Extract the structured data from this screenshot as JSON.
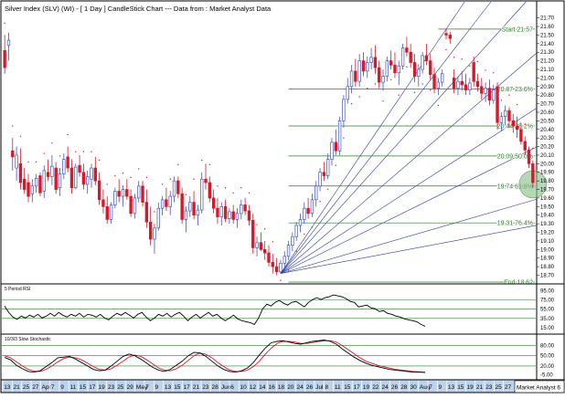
{
  "header": {
    "title": "Silver Index (SLV) (WI) - [ 1 Day ] CandleStick Chart --- Data from : Market Analyst Data"
  },
  "colors": {
    "up": "#4057c8",
    "down": "#d8182a",
    "fib": "#2b7a2b",
    "fan": "#2a3a9c",
    "indicator_line": "#000000",
    "stoch_signal": "#d8182a",
    "highlight": "#8fc08f",
    "grid": "#b8b8b8",
    "dates_bar": "#bdd3ec"
  },
  "chart_data": [
    {
      "type": "candlestick",
      "name": "price",
      "y_ticks": [
        "21.70",
        "21.60",
        "21.50",
        "21.40",
        "21.30",
        "21.20",
        "21.10",
        "21.00",
        "20.90",
        "20.80",
        "20.70",
        "20.60",
        "20.50",
        "20.40",
        "20.30",
        "20.20",
        "20.10",
        "20.00",
        "19.90",
        "19.80",
        "19.70",
        "19.60",
        "19.50",
        "19.40",
        "19.30",
        "19.20",
        "19.10",
        "19.00",
        "18.90",
        "18.80",
        "18.70"
      ],
      "ylim": [
        18.62,
        21.76
      ],
      "fib_levels": [
        {
          "label": "Start 21.57",
          "value": 21.57
        },
        {
          "label": "20.87 23.6%",
          "value": 20.87
        },
        {
          "label": "20.44 38.2%",
          "value": 20.44
        },
        {
          "label": "20.09 50.0%",
          "value": 20.09
        },
        {
          "label": "19.74 61.8%",
          "value": 19.74
        },
        {
          "label": "19.31 76.4%",
          "value": 19.31
        },
        {
          "label": "End 18.62",
          "value": 18.62
        }
      ],
      "fan_origin": {
        "index": 70,
        "value": 18.72
      },
      "fan_targets": [
        {
          "index": 112,
          "value": 21.57
        },
        {
          "index": 118,
          "value": 21.57
        },
        {
          "index": 126,
          "value": 21.57
        },
        {
          "index": 142,
          "value": 21.57
        },
        {
          "index": 166,
          "value": 21.57
        },
        {
          "index": 166,
          "value": 20.9
        },
        {
          "index": 166,
          "value": 20.0
        },
        {
          "index": 166,
          "value": 19.55
        }
      ],
      "highlight": {
        "index": 134,
        "value": 19.76
      },
      "candles": [
        [
          21.32,
          21.5,
          21.05,
          21.12
        ],
        [
          21.38,
          21.53,
          21.2,
          21.44
        ],
        [
          20.15,
          20.3,
          19.92,
          20.08
        ],
        [
          19.95,
          20.2,
          19.8,
          20.1
        ],
        [
          20.0,
          20.18,
          19.7,
          19.78
        ],
        [
          19.82,
          19.95,
          19.65,
          19.7
        ],
        [
          19.78,
          19.88,
          19.55,
          19.62
        ],
        [
          19.65,
          19.82,
          19.55,
          19.74
        ],
        [
          19.74,
          19.88,
          19.66,
          19.83
        ],
        [
          19.86,
          19.9,
          19.62,
          19.66
        ],
        [
          19.68,
          19.98,
          19.6,
          19.92
        ],
        [
          19.9,
          20.05,
          19.8,
          19.85
        ],
        [
          19.85,
          20.1,
          19.75,
          19.97
        ],
        [
          19.95,
          20.02,
          19.65,
          19.7
        ],
        [
          19.72,
          19.95,
          19.62,
          19.88
        ],
        [
          19.88,
          20.12,
          19.82,
          20.05
        ],
        [
          20.08,
          20.2,
          19.9,
          19.95
        ],
        [
          19.95,
          20.05,
          19.65,
          19.72
        ],
        [
          19.72,
          20.0,
          19.7,
          19.96
        ],
        [
          19.98,
          20.1,
          19.85,
          19.9
        ],
        [
          19.9,
          20.0,
          19.7,
          19.76
        ],
        [
          19.76,
          19.92,
          19.65,
          19.85
        ],
        [
          19.82,
          20.0,
          19.72,
          19.95
        ],
        [
          19.95,
          20.08,
          19.75,
          19.8
        ],
        [
          19.8,
          19.9,
          19.52,
          19.58
        ],
        [
          19.58,
          19.7,
          19.42,
          19.5
        ],
        [
          19.5,
          19.62,
          19.3,
          19.35
        ],
        [
          19.35,
          19.55,
          19.3,
          19.52
        ],
        [
          19.52,
          19.72,
          19.48,
          19.68
        ],
        [
          19.68,
          19.82,
          19.55,
          19.62
        ],
        [
          19.62,
          19.75,
          19.5,
          19.7
        ],
        [
          19.7,
          19.82,
          19.58,
          19.62
        ],
        [
          19.62,
          19.7,
          19.38,
          19.42
        ],
        [
          19.42,
          19.65,
          19.36,
          19.6
        ],
        [
          19.6,
          19.8,
          19.55,
          19.74
        ],
        [
          19.74,
          19.8,
          19.5,
          19.55
        ],
        [
          19.55,
          19.7,
          19.25,
          19.32
        ],
        [
          19.32,
          19.5,
          19.05,
          19.12
        ],
        [
          19.12,
          19.3,
          18.95,
          19.25
        ],
        [
          19.25,
          19.55,
          19.22,
          19.48
        ],
        [
          19.48,
          19.62,
          19.4,
          19.58
        ],
        [
          19.58,
          19.72,
          19.45,
          19.5
        ],
        [
          19.5,
          19.68,
          19.4,
          19.62
        ],
        [
          19.62,
          19.85,
          19.55,
          19.8
        ],
        [
          19.8,
          19.85,
          19.6,
          19.65
        ],
        [
          19.65,
          19.72,
          19.3,
          19.35
        ],
        [
          19.35,
          19.5,
          19.2,
          19.45
        ],
        [
          19.45,
          19.62,
          19.38,
          19.55
        ],
        [
          19.55,
          19.68,
          19.35,
          19.4
        ],
        [
          19.4,
          19.52,
          19.28,
          19.46
        ],
        [
          19.46,
          19.9,
          19.42,
          19.82
        ],
        [
          19.82,
          20.0,
          19.7,
          19.78
        ],
        [
          19.78,
          19.85,
          19.55,
          19.6
        ],
        [
          19.6,
          19.7,
          19.42,
          19.48
        ],
        [
          19.48,
          19.6,
          19.3,
          19.38
        ],
        [
          19.38,
          19.55,
          19.28,
          19.5
        ],
        [
          19.5,
          19.58,
          19.32,
          19.36
        ],
        [
          19.36,
          19.48,
          19.3,
          19.44
        ],
        [
          19.44,
          19.52,
          19.3,
          19.35
        ],
        [
          19.35,
          19.48,
          19.25,
          19.42
        ],
        [
          19.42,
          19.58,
          19.35,
          19.52
        ],
        [
          19.52,
          19.6,
          19.4,
          19.45
        ],
        [
          19.45,
          19.52,
          19.28,
          19.34
        ],
        [
          19.34,
          19.42,
          18.95,
          19.02
        ],
        [
          19.02,
          19.15,
          18.92,
          19.08
        ],
        [
          19.08,
          19.2,
          18.98,
          19.0
        ],
        [
          19.0,
          19.1,
          18.88,
          18.96
        ],
        [
          18.96,
          19.05,
          18.8,
          18.85
        ],
        [
          18.85,
          18.95,
          18.72,
          18.8
        ],
        [
          18.8,
          18.9,
          18.7,
          18.74
        ],
        [
          18.74,
          18.88,
          18.72,
          18.84
        ],
        [
          18.84,
          18.98,
          18.8,
          18.92
        ],
        [
          18.92,
          19.1,
          18.88,
          19.05
        ],
        [
          19.05,
          19.2,
          18.98,
          19.15
        ],
        [
          19.15,
          19.32,
          19.1,
          19.28
        ],
        [
          19.28,
          19.42,
          19.2,
          19.35
        ],
        [
          19.35,
          19.55,
          19.3,
          19.48
        ],
        [
          19.48,
          19.6,
          19.36,
          19.42
        ],
        [
          19.42,
          19.65,
          19.38,
          19.58
        ],
        [
          19.58,
          19.8,
          19.5,
          19.74
        ],
        [
          19.74,
          19.95,
          19.68,
          19.9
        ],
        [
          19.9,
          20.02,
          19.8,
          19.86
        ],
        [
          19.86,
          20.12,
          19.82,
          20.05
        ],
        [
          20.05,
          20.3,
          19.98,
          20.25
        ],
        [
          20.25,
          20.4,
          20.1,
          20.15
        ],
        [
          20.15,
          20.55,
          20.1,
          20.5
        ],
        [
          20.5,
          20.8,
          20.42,
          20.75
        ],
        [
          20.75,
          21.0,
          20.7,
          20.9
        ],
        [
          20.9,
          21.15,
          20.82,
          21.08
        ],
        [
          21.08,
          21.22,
          20.9,
          20.96
        ],
        [
          20.96,
          21.28,
          20.9,
          21.2
        ],
        [
          21.2,
          21.3,
          21.02,
          21.08
        ],
        [
          21.08,
          21.25,
          21.0,
          21.18
        ],
        [
          21.18,
          21.35,
          21.1,
          21.24
        ],
        [
          21.24,
          21.38,
          21.05,
          21.12
        ],
        [
          21.12,
          21.2,
          20.88,
          20.95
        ],
        [
          20.95,
          21.1,
          20.85,
          21.02
        ],
        [
          21.02,
          21.25,
          20.96,
          21.2
        ],
        [
          21.2,
          21.32,
          21.1,
          21.15
        ],
        [
          21.15,
          21.3,
          21.0,
          21.06
        ],
        [
          21.06,
          21.2,
          20.92,
          21.14
        ],
        [
          21.14,
          21.4,
          21.1,
          21.35
        ],
        [
          21.35,
          21.48,
          21.25,
          21.3
        ],
        [
          21.3,
          21.4,
          21.12,
          21.18
        ],
        [
          21.18,
          21.28,
          20.95,
          21.02
        ],
        [
          21.02,
          21.16,
          20.9,
          21.1
        ],
        [
          21.1,
          21.3,
          21.05,
          21.26
        ],
        [
          21.26,
          21.4,
          21.15,
          21.2
        ],
        [
          21.2,
          21.28,
          20.98,
          21.04
        ],
        [
          21.04,
          21.12,
          20.82,
          20.88
        ],
        [
          20.88,
          21.0,
          20.8,
          20.95
        ],
        [
          20.95,
          21.1,
          20.9,
          21.05
        ],
        [
          21.52,
          21.57,
          21.45,
          21.5
        ],
        [
          21.5,
          21.54,
          21.4,
          21.46
        ],
        [
          21.0,
          21.1,
          20.82,
          20.88
        ],
        [
          20.88,
          21.02,
          20.8,
          20.96
        ],
        [
          20.96,
          21.08,
          20.85,
          20.92
        ],
        [
          20.92,
          21.05,
          20.8,
          20.86
        ],
        [
          20.86,
          21.0,
          20.8,
          20.94
        ],
        [
          21.18,
          21.25,
          20.9,
          20.96
        ],
        [
          20.96,
          21.05,
          20.84,
          20.9
        ],
        [
          20.9,
          21.0,
          20.75,
          20.82
        ],
        [
          20.82,
          20.95,
          20.72,
          20.88
        ],
        [
          20.88,
          20.98,
          20.68,
          20.74
        ],
        [
          20.74,
          20.92,
          20.7,
          20.86
        ],
        [
          20.9,
          20.95,
          20.4,
          20.48
        ],
        [
          20.48,
          20.6,
          20.38,
          20.55
        ],
        [
          20.55,
          20.68,
          20.45,
          20.62
        ],
        [
          20.62,
          20.66,
          20.42,
          20.5
        ],
        [
          20.5,
          20.58,
          20.36,
          20.44
        ],
        [
          20.44,
          20.55,
          20.3,
          20.4
        ],
        [
          20.4,
          20.48,
          20.22,
          20.26
        ],
        [
          20.26,
          20.32,
          20.1,
          20.16
        ],
        [
          20.16,
          20.2,
          19.95,
          20.0
        ],
        [
          20.0,
          20.04,
          19.72,
          19.78
        ]
      ]
    },
    {
      "type": "line",
      "name": "rsi",
      "label": "5 Period RSI",
      "y_ticks": [
        "95.00",
        "75.00",
        "55.00",
        "35.00",
        "15.00"
      ],
      "ylim": [
        5,
        100
      ],
      "bands": [
        75,
        55,
        35
      ],
      "values": [
        62,
        48,
        38,
        33,
        40,
        36,
        42,
        38,
        44,
        36,
        40,
        46,
        40,
        48,
        42,
        38,
        44,
        40,
        46,
        38,
        44,
        42,
        38,
        44,
        36,
        32,
        40,
        46,
        42,
        48,
        42,
        36,
        44,
        48,
        38,
        30,
        36,
        44,
        40,
        46,
        38,
        44,
        48,
        40,
        30,
        38,
        44,
        36,
        42,
        48,
        40,
        44,
        36,
        30,
        36,
        42,
        34,
        30,
        28,
        26,
        22,
        36,
        56,
        66,
        62,
        70,
        74,
        68,
        64,
        70,
        72,
        66,
        60,
        70,
        76,
        80,
        76,
        80,
        82,
        86,
        84,
        82,
        78,
        72,
        70,
        60,
        62,
        64,
        58,
        56,
        50,
        52,
        46,
        44,
        40,
        38,
        34,
        32,
        30,
        28,
        22,
        18
      ]
    },
    {
      "type": "line",
      "name": "stochastic",
      "label": "10/3/3 Slow Stochastic",
      "y_ticks": [
        "80.00",
        "50.00",
        "20.00",
        "-5.00"
      ],
      "ylim": [
        -15,
        100
      ],
      "bands": [
        80,
        50,
        20
      ],
      "k_values": [
        45,
        38,
        22,
        12,
        4,
        2,
        6,
        18,
        30,
        44,
        46,
        48,
        40,
        30,
        20,
        10,
        6,
        8,
        20,
        34,
        48,
        55,
        50,
        40,
        28,
        16,
        8,
        4,
        10,
        22,
        34,
        50,
        60,
        58,
        48,
        34,
        20,
        10,
        4,
        2,
        6,
        14,
        30,
        52,
        72,
        88,
        92,
        94,
        90,
        86,
        84,
        88,
        92,
        94,
        96,
        92,
        84,
        70,
        58,
        46,
        36,
        28,
        22,
        18,
        14,
        10,
        8,
        6,
        4,
        2,
        2,
        1
      ],
      "d_values": [
        50,
        44,
        32,
        20,
        10,
        5,
        4,
        10,
        20,
        32,
        42,
        46,
        44,
        38,
        28,
        18,
        10,
        8,
        12,
        22,
        34,
        46,
        52,
        48,
        38,
        26,
        14,
        8,
        6,
        12,
        22,
        36,
        50,
        58,
        54,
        44,
        30,
        18,
        8,
        4,
        4,
        8,
        18,
        34,
        54,
        72,
        86,
        92,
        92,
        90,
        86,
        86,
        88,
        92,
        94,
        94,
        90,
        80,
        68,
        56,
        44,
        34,
        28,
        22,
        18,
        14,
        10,
        8,
        6,
        4,
        3,
        2
      ]
    }
  ],
  "date_axis": {
    "labels": [
      "13",
      "21",
      "25",
      "27",
      "Apr",
      "7",
      "9",
      "11",
      "15",
      "17",
      "19",
      "23",
      "25",
      "29",
      "May",
      "7",
      "9",
      "13",
      "15",
      "17",
      "21",
      "23",
      "28",
      "Jun",
      "6",
      "10",
      "12",
      "14",
      "16",
      "18",
      "20",
      "24",
      "26",
      "Jul",
      "8",
      "11",
      "15",
      "17",
      "19",
      "22",
      "24",
      "26",
      "28",
      "30",
      "Aug",
      "7",
      "9",
      "13",
      "15",
      "19",
      "21",
      "23",
      "25",
      "27"
    ],
    "footer": "Market Analyst 6"
  }
}
